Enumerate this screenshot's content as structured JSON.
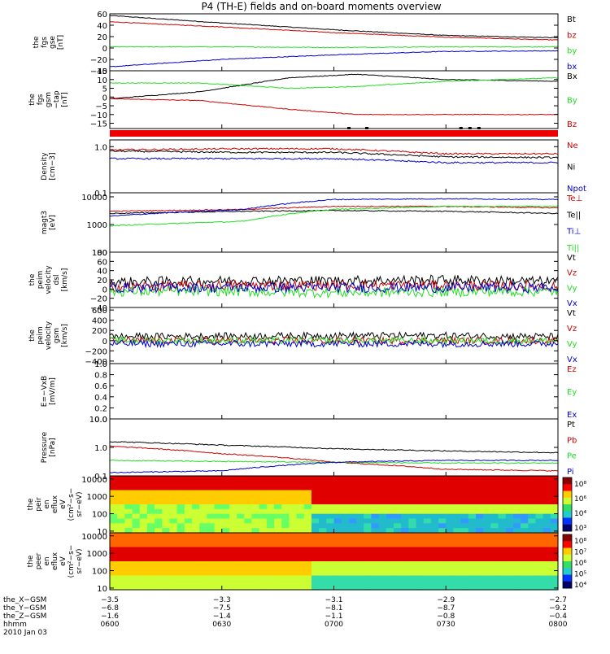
{
  "title": "P4 (TH-E) fields and on-board moments overview",
  "colors": {
    "black": "#000000",
    "red": "#cc0000",
    "green": "#22dd22",
    "blue": "#0000cc"
  },
  "chart_data": [
    {
      "id": "fgs_gse",
      "type": "line",
      "ylabel": [
        "the",
        "fgs",
        "gse",
        "[nT]"
      ],
      "ylim": [
        -40,
        60
      ],
      "yticks": [
        "60",
        "40",
        "20",
        "0",
        "−20",
        "−40"
      ],
      "ytick_values": [
        60,
        40,
        20,
        0,
        -20,
        -40
      ],
      "x": [
        0,
        0.25,
        0.5,
        0.75,
        1.0
      ],
      "series": [
        {
          "name": "Bt",
          "color": "black",
          "values": [
            57,
            44,
            32,
            22,
            18
          ]
        },
        {
          "name": "bz",
          "color": "red",
          "values": [
            46,
            37,
            27,
            19,
            14
          ]
        },
        {
          "name": "by",
          "color": "green",
          "values": [
            2,
            2,
            1,
            2,
            2
          ]
        },
        {
          "name": "bx",
          "color": "blue",
          "values": [
            -33,
            -20,
            -12,
            -6,
            -5
          ]
        }
      ]
    },
    {
      "id": "fgs_gsm",
      "type": "line",
      "ylabel": [
        "the",
        "fgs",
        "gsm",
        "−tap",
        "[nT]"
      ],
      "ylim": [
        -18,
        15
      ],
      "yticks": [
        "15",
        "10",
        "5",
        "0",
        "−5",
        "−10",
        "−15"
      ],
      "ytick_values": [
        15,
        10,
        5,
        0,
        -5,
        -10,
        -15
      ],
      "x": [
        0,
        0.2,
        0.4,
        0.55,
        0.75,
        1.0
      ],
      "series": [
        {
          "name": "Bx",
          "color": "black",
          "values": [
            -1,
            3,
            11,
            13,
            10,
            9
          ]
        },
        {
          "name": "By",
          "color": "green",
          "values": [
            8,
            8,
            5,
            6,
            9,
            11
          ]
        },
        {
          "name": "Bz",
          "color": "red",
          "values": [
            -1,
            -2,
            -7,
            -10,
            -10,
            -10
          ]
        }
      ]
    },
    {
      "id": "density",
      "type": "line",
      "ylabel": [
        "Density",
        "[cm−3]"
      ],
      "log": true,
      "ylim": [
        0.1,
        1.4
      ],
      "yticks": [
        "1.0",
        "0.1"
      ],
      "ytick_values": [
        1.0,
        0.1
      ],
      "x": [
        0,
        0.3,
        0.5,
        0.75,
        1.0
      ],
      "series": [
        {
          "name": "Ne",
          "color": "red",
          "values": [
            0.85,
            0.9,
            0.9,
            0.7,
            0.7
          ]
        },
        {
          "name": "Ni",
          "color": "black",
          "values": [
            0.8,
            0.75,
            0.75,
            0.6,
            0.58
          ]
        },
        {
          "name": "Npot",
          "color": "blue",
          "values": [
            0.55,
            0.55,
            0.55,
            0.45,
            0.45
          ]
        }
      ]
    },
    {
      "id": "temperature",
      "type": "line",
      "ylabel": [
        "magt3",
        "[eV]"
      ],
      "log": true,
      "ylim": [
        100,
        14000
      ],
      "yticks": [
        "10000",
        "1000",
        "100"
      ],
      "ytick_values": [
        10000,
        1000,
        100
      ],
      "x": [
        0,
        0.3,
        0.5,
        0.75,
        1.0
      ],
      "series": [
        {
          "name": "Te⊥",
          "color": "red",
          "values": [
            3000,
            3500,
            4500,
            4500,
            4000
          ]
        },
        {
          "name": "Te||",
          "color": "black",
          "values": [
            2500,
            3000,
            3200,
            3000,
            2500
          ]
        },
        {
          "name": "Ti⊥",
          "color": "blue",
          "values": [
            2000,
            3500,
            8000,
            8500,
            8000
          ]
        },
        {
          "name": "Ti||",
          "color": "green",
          "values": [
            900,
            1300,
            3500,
            4500,
            4500
          ]
        }
      ]
    },
    {
      "id": "velocity_dsl",
      "type": "line",
      "ylabel": [
        "the",
        "peim",
        "velocity",
        "dsl",
        "[km/s]"
      ],
      "ylim": [
        -40,
        80
      ],
      "yticks": [
        "80",
        "60",
        "40",
        "20",
        "0",
        "−20",
        "−40"
      ],
      "ytick_values": [
        80,
        60,
        40,
        20,
        0,
        -20,
        -40
      ],
      "x": [
        0,
        0.25,
        0.5,
        0.75,
        1.0
      ],
      "series": [
        {
          "name": "Vt",
          "color": "black",
          "values": [
            15,
            18,
            18,
            20,
            16
          ]
        },
        {
          "name": "Vz",
          "color": "red",
          "values": [
            5,
            8,
            8,
            8,
            6
          ]
        },
        {
          "name": "Vy",
          "color": "green",
          "values": [
            -5,
            -5,
            -8,
            -6,
            -5
          ]
        },
        {
          "name": "Vx",
          "color": "blue",
          "values": [
            3,
            3,
            3,
            3,
            3
          ]
        }
      ]
    },
    {
      "id": "velocity_gsm",
      "type": "line",
      "ylabel": [
        "the",
        "peim",
        "velocity",
        "gsm",
        "[km/s]"
      ],
      "ylim": [
        -450,
        650
      ],
      "yticks": [
        "600",
        "400",
        "200",
        "0",
        "−200",
        "−400"
      ],
      "ytick_values": [
        600,
        400,
        200,
        0,
        -200,
        -400
      ],
      "x": [
        0,
        0.25,
        0.5,
        0.75,
        1.0
      ],
      "series": [
        {
          "name": "Vt",
          "color": "black",
          "values": [
            80,
            90,
            100,
            100,
            80
          ]
        },
        {
          "name": "Vz",
          "color": "red",
          "values": [
            0,
            0,
            0,
            0,
            0
          ]
        },
        {
          "name": "Vy",
          "color": "green",
          "values": [
            0,
            0,
            0,
            0,
            0
          ]
        },
        {
          "name": "Vx",
          "color": "blue",
          "values": [
            -60,
            -60,
            -60,
            -60,
            -60
          ]
        }
      ]
    },
    {
      "id": "efield",
      "type": "line",
      "ylabel": [
        "E=−VxB",
        "[mV/m]"
      ],
      "ylim": [
        0,
        1.0
      ],
      "yticks": [
        "1.0",
        "0.8",
        "0.6",
        "0.4",
        "0.2",
        "0.0"
      ],
      "ytick_values": [
        1.0,
        0.8,
        0.6,
        0.4,
        0.2,
        0.0
      ],
      "x": [],
      "series": [
        {
          "name": "Ez",
          "color": "red",
          "values": []
        },
        {
          "name": "Ey",
          "color": "green",
          "values": []
        },
        {
          "name": "Ex",
          "color": "blue",
          "values": []
        }
      ]
    },
    {
      "id": "pressure",
      "type": "line",
      "ylabel": [
        "Pressure",
        "[nPa]"
      ],
      "log": true,
      "ylim": [
        0.1,
        10
      ],
      "yticks": [
        "10.0",
        "1.0",
        "0.1"
      ],
      "ytick_values": [
        10,
        1,
        0.1
      ],
      "x": [
        0,
        0.25,
        0.5,
        0.75,
        1.0
      ],
      "series": [
        {
          "name": "Pt",
          "color": "black",
          "values": [
            1.6,
            1.2,
            0.9,
            0.75,
            0.65
          ]
        },
        {
          "name": "Pb",
          "color": "red",
          "values": [
            1.1,
            0.6,
            0.3,
            0.17,
            0.15
          ]
        },
        {
          "name": "Pe",
          "color": "green",
          "values": [
            0.35,
            0.32,
            0.3,
            0.28,
            0.28
          ]
        },
        {
          "name": "Pi",
          "color": "blue",
          "values": [
            0.13,
            0.15,
            0.3,
            0.35,
            0.35
          ]
        }
      ]
    },
    {
      "id": "ion_spectrogram",
      "type": "heatmap",
      "ylabel": [
        "the",
        "peir",
        "en",
        "eflux",
        "eV",
        "(cm²−s−",
        "sr−eV)"
      ],
      "log": true,
      "ylim": [
        8,
        15000
      ],
      "yticks": [
        "10000",
        "1000",
        "100",
        "10"
      ],
      "ytick_values": [
        10000,
        1000,
        100,
        10
      ],
      "colorbar_ticks": [
        "10⁸",
        "10⁶",
        "10⁴",
        "10³"
      ]
    },
    {
      "id": "electron_spectrogram",
      "type": "heatmap",
      "ylabel": [
        "the",
        "peer",
        "en",
        "eflux",
        "eV",
        "(cm²−s−",
        "sr−eV)"
      ],
      "log": true,
      "ylim": [
        8,
        15000
      ],
      "yticks": [
        "10000",
        "1000",
        "100",
        "10"
      ],
      "ytick_values": [
        10000,
        1000,
        100,
        10
      ],
      "colorbar_ticks": [
        "10⁸",
        "10⁷",
        "10⁶",
        "10⁵",
        "10⁴"
      ]
    }
  ],
  "x_axis": {
    "tick_fractions": [
      0,
      0.25,
      0.5,
      0.75,
      1.0
    ],
    "row_labels": [
      "the_X−GSM",
      "the_Y−GSM",
      "the_Z−GSM",
      "hhmm",
      "2010 Jan 03"
    ],
    "rows": [
      [
        "−3.5",
        "−3.3",
        "−3.1",
        "−2.9",
        "−2.7"
      ],
      [
        "−6.8",
        "−7.5",
        "−8.1",
        "−8.7",
        "−9.2"
      ],
      [
        "−1.6",
        "−1.4",
        "−1.1",
        "−0.8",
        "−0.4"
      ],
      [
        "0600",
        "0630",
        "0700",
        "0730",
        "0800"
      ]
    ]
  }
}
